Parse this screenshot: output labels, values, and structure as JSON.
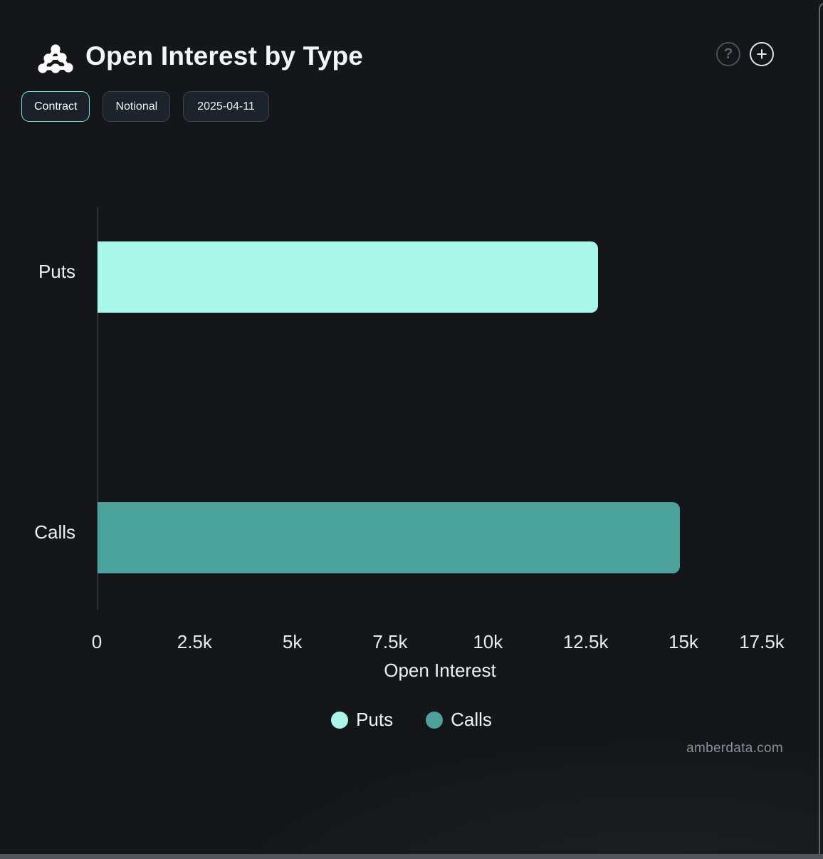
{
  "header": {
    "title": "Open Interest by Type",
    "help_icon_glyph": "?",
    "add_icon_glyph": "+"
  },
  "toolbar": {
    "buttons": [
      {
        "label": "Contract",
        "active": true
      },
      {
        "label": "Notional",
        "active": false
      },
      {
        "label": "2025-04-11",
        "active": false
      }
    ]
  },
  "colors": {
    "background": "#14161a",
    "puts": "#a9f7e9",
    "calls": "#4aa29b",
    "active_button_border": "#71e7d3",
    "axis_line": "#2f3236",
    "watermark_text": "#8b8e93"
  },
  "chart_data": {
    "type": "bar",
    "orientation": "horizontal",
    "title": "Open Interest by Type",
    "categories": [
      "Puts",
      "Calls"
    ],
    "series": [
      {
        "name": "Puts",
        "category": "Puts",
        "value": 12800,
        "color": "#a9f7e9"
      },
      {
        "name": "Calls",
        "category": "Calls",
        "value": 14900,
        "color": "#4aa29b"
      }
    ],
    "xlabel": "Open Interest",
    "ylabel": "",
    "xlim": [
      0,
      17500
    ],
    "x_ticks": [
      {
        "value": 0,
        "label": "0"
      },
      {
        "value": 2500,
        "label": "2.5k"
      },
      {
        "value": 5000,
        "label": "5k"
      },
      {
        "value": 7500,
        "label": "7.5k"
      },
      {
        "value": 10000,
        "label": "10k"
      },
      {
        "value": 12500,
        "label": "12.5k"
      },
      {
        "value": 15000,
        "label": "15k"
      },
      {
        "value": 17500,
        "label": "17.5k"
      }
    ],
    "grid": false,
    "legend": {
      "position": "bottom",
      "entries": [
        "Puts",
        "Calls"
      ]
    }
  },
  "watermark": "amberdata.com"
}
